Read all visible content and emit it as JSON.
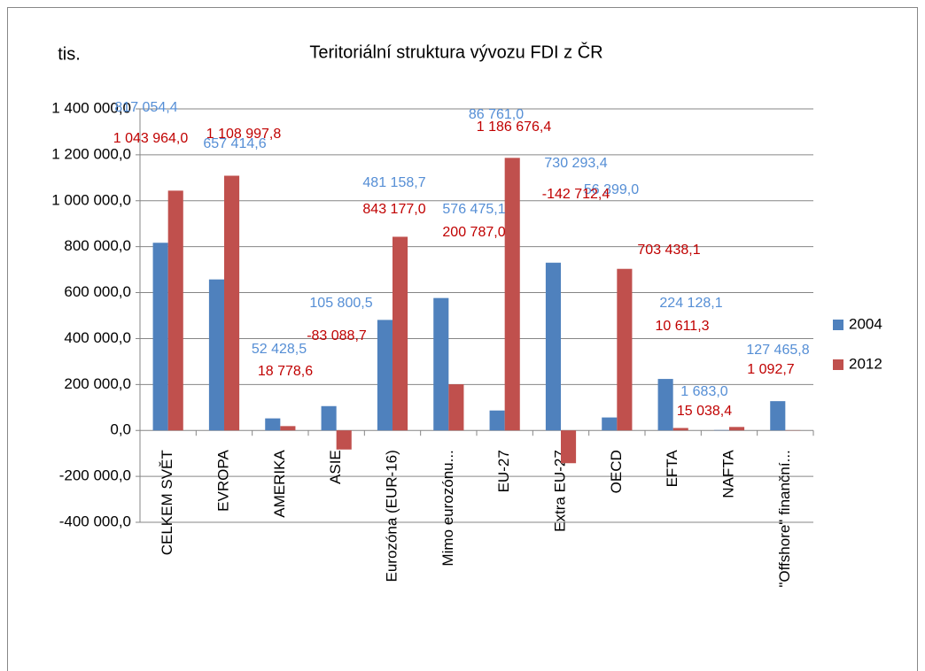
{
  "chart_data": {
    "type": "bar",
    "title": "Teritoriální struktura vývozu FDI z ČR",
    "ylabel": "tis.",
    "categories": [
      "CELKEM SVĚT",
      "EVROPA",
      "AMERIKA",
      "ASIE",
      "Eurozóna (EUR-16)",
      "Mimo eurozónu...",
      "EU-27",
      "Extra EU-27",
      "OECD",
      "EFTA",
      "NAFTA",
      "\"Offshore\" finanční..."
    ],
    "series": [
      {
        "name": "2004",
        "color": "#4f81bd",
        "values": [
          817054.4,
          657414.6,
          52428.5,
          105800.5,
          481158.7,
          576475.1,
          86761.0,
          730293.4,
          56399.0,
          224128.1,
          1683.0,
          127465.8
        ],
        "value_labels": [
          "817 054,4",
          "657 414,6",
          "52 428,5",
          "105 800,5",
          "481 158,7",
          "576 475,1",
          "86 761,0",
          "730 293,4",
          "56 399,0",
          "224 128,1",
          "1 683,0",
          "127 465,8"
        ]
      },
      {
        "name": "2012",
        "color": "#c0504d",
        "values": [
          1043964.0,
          1108997.8,
          18778.6,
          -83088.7,
          843177.0,
          200787.0,
          1186676.4,
          -142712.4,
          703438.1,
          10611.3,
          15038.4,
          1092.7
        ],
        "value_labels": [
          "1 043 964,0",
          "1 108 997,8",
          "18 778,6",
          "-83 088,7",
          "843 177,0",
          "200 787,0",
          "1 186 676,4",
          "-142 712,4",
          "703 438,1",
          "10 611,3",
          "15 038,4",
          "1 092,7"
        ]
      }
    ],
    "ylim": [
      -400000,
      1400000
    ],
    "yticks": [
      {
        "value": -400000,
        "label": "-400 000,0"
      },
      {
        "value": -200000,
        "label": "-200 000,0"
      },
      {
        "value": 0,
        "label": "0,0"
      },
      {
        "value": 200000,
        "label": "200 000,0"
      },
      {
        "value": 400000,
        "label": "400 000,0"
      },
      {
        "value": 600000,
        "label": "600 000,0"
      },
      {
        "value": 800000,
        "label": "800 000,0"
      },
      {
        "value": 1000000,
        "label": "1 000 000,0"
      },
      {
        "value": 1200000,
        "label": "1 200 000,0"
      },
      {
        "value": 1400000,
        "label": "1 400 000,0"
      }
    ],
    "grid": true,
    "legend": "right"
  }
}
